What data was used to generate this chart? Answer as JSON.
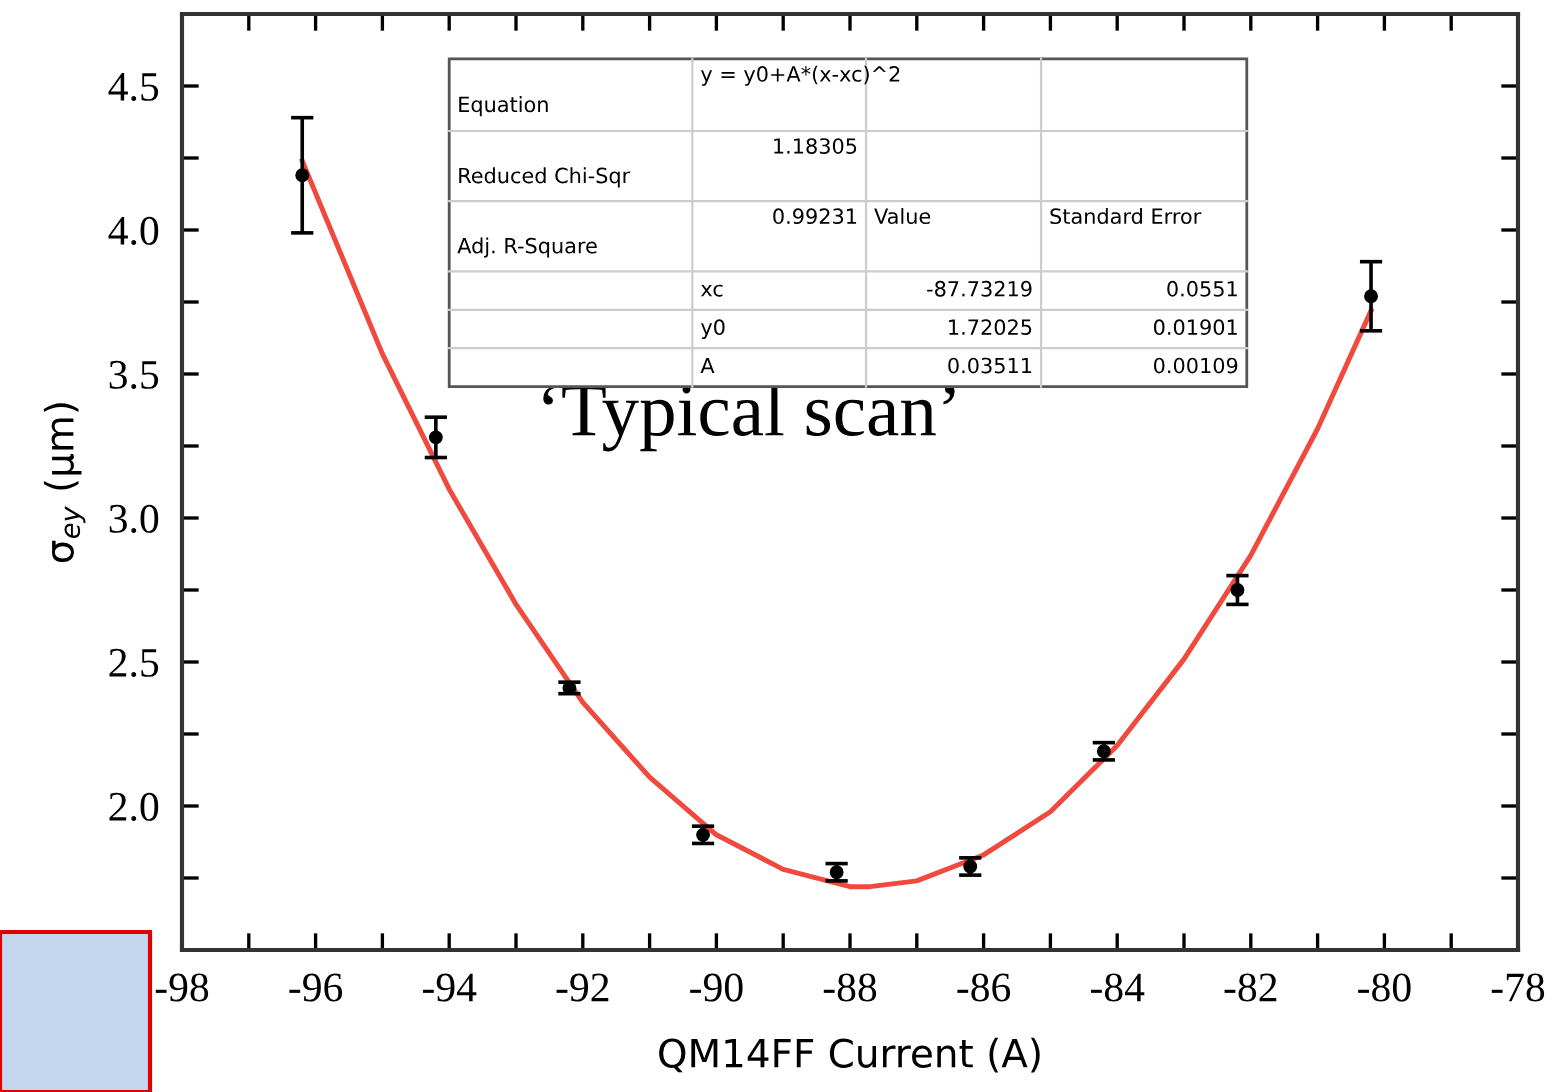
{
  "chart_data": {
    "type": "scatter",
    "xlabel": "QM14FF Current (A)",
    "ylabel": "σ$_{ey}$ (µm)",
    "xlim": [
      -98,
      -78
    ],
    "xticks": [
      -98,
      {
        "value": -97,
        "label": null
      },
      -96,
      {
        "value": -95,
        "label": null
      },
      -94,
      {
        "value": -93,
        "label": null
      },
      -92,
      {
        "value": -91,
        "label": null
      },
      -90,
      {
        "value": -89,
        "label": null
      },
      -88,
      {
        "value": -87,
        "label": null
      },
      -86,
      {
        "value": -85,
        "label": null
      },
      -84,
      {
        "value": -83,
        "label": null
      },
      -82,
      {
        "value": -81,
        "label": null
      },
      -80,
      {
        "value": -79,
        "label": null
      },
      -78
    ],
    "ylim": [
      1.5,
      4.75
    ],
    "yticks": [
      {
        "value": 1.75,
        "label": null
      },
      {
        "value": 2.0,
        "label": "2.0"
      },
      {
        "value": 2.25,
        "label": null
      },
      2.5,
      {
        "value": 2.75,
        "label": null
      },
      {
        "value": 3.0,
        "label": "3.0"
      },
      {
        "value": 3.25,
        "label": null
      },
      3.5,
      {
        "value": 3.75,
        "label": null
      },
      {
        "value": 4.0,
        "label": "4.0"
      },
      {
        "value": 4.25,
        "label": null
      },
      4.5
    ],
    "grid": false,
    "series": [
      {
        "color": "#000000",
        "marker": "circle",
        "x": [
          -96.2,
          -94.2,
          -92.2,
          -90.2,
          -88.2,
          -86.2,
          -84.2,
          -82.2,
          -80.2
        ],
        "values": [
          4.19,
          3.28,
          2.41,
          1.9,
          1.77,
          1.79,
          2.19,
          2.75,
          3.77
        ],
        "errors": [
          0.2,
          0.07,
          0.02,
          0.03,
          0.03,
          0.03,
          0.03,
          0.05,
          0.12
        ]
      },
      {
        "type": "line",
        "color": "#f04a3e",
        "marker": "none",
        "line_style": "solid",
        "x": [
          -96.2,
          -95,
          -94,
          -93,
          -92,
          -91,
          -90,
          -89,
          -88,
          -87.7,
          -87,
          -86,
          -85,
          -84,
          -83,
          -82,
          -81,
          -80.2
        ],
        "values": [
          4.24,
          3.57,
          3.1,
          2.7,
          2.36,
          2.1,
          1.9,
          1.78,
          1.72,
          1.72,
          1.74,
          1.83,
          1.98,
          2.21,
          2.51,
          2.87,
          3.31,
          3.72
        ]
      }
    ],
    "annotations": [
      "‘Typical scan’",
      "Equation",
      "y = y0+A*(x-xc)^2",
      "Reduced Chi-Sqr",
      "1.18305",
      "Adj. R-Square",
      "0.99231",
      "Value",
      "Standard Error",
      "xc",
      "-87.73219",
      "0.0551",
      "y0",
      "1.72025",
      "0.01901",
      "A",
      "0.03511",
      "0.00109"
    ]
  }
}
